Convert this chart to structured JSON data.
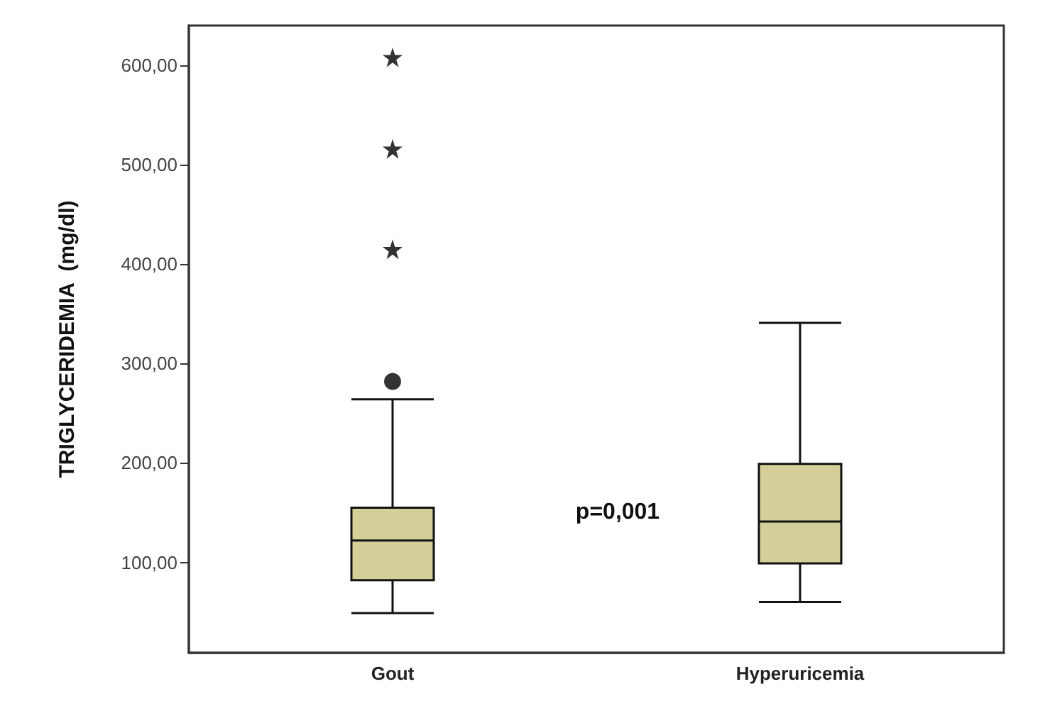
{
  "chart_data": {
    "type": "box",
    "ylabel": "TRIGLYCERIDEMIA  (mg/dl)",
    "categories": [
      "Gout",
      "Hyperuricemia"
    ],
    "series": [
      {
        "color": "#d4cf99",
        "boxes": [
          {
            "low": 49,
            "q1": 82,
            "median": 122,
            "q3": 155,
            "high": 264,
            "outliers": [
              282
            ]
          },
          {
            "low": 60,
            "q1": 99,
            "median": 141,
            "q3": 199,
            "high": 341
          }
        ]
      },
      {
        "type": "scatter",
        "marker": "star",
        "color": "#000000",
        "x": [
          "Gout",
          "Gout",
          "Gout"
        ],
        "values": [
          608,
          516,
          415
        ]
      }
    ],
    "ylim": [
      9,
      640
    ],
    "yticks": [
      {
        "value": 100,
        "label": "100,00"
      },
      {
        "value": 200,
        "label": "200,00"
      },
      {
        "value": 300,
        "label": "300,00"
      },
      {
        "value": 400,
        "label": "400,00"
      },
      {
        "value": 500,
        "label": "500,00"
      },
      {
        "value": 600,
        "label": "600,00"
      }
    ],
    "annotations": [
      "p=0,001"
    ]
  }
}
